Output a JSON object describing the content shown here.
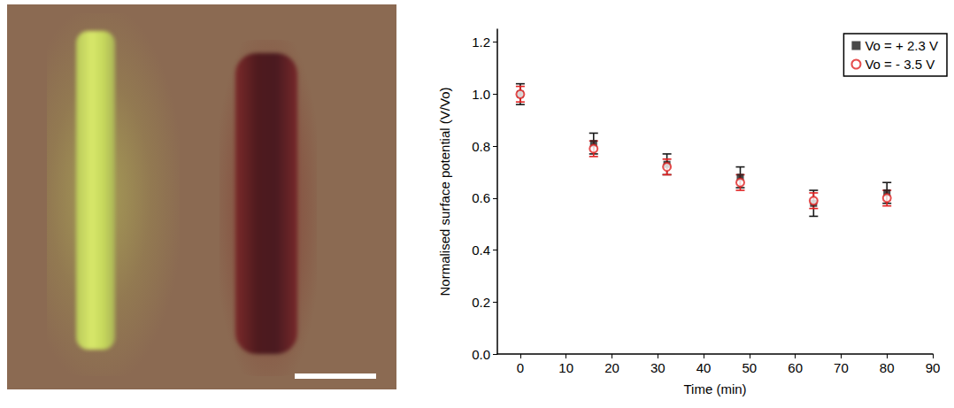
{
  "chart_data": {
    "type": "scatter",
    "x_label": "Time (min)",
    "y_label": "Normalised surface potential (V/Vo)",
    "xlim": [
      -5,
      90
    ],
    "xticks": [
      0,
      10,
      20,
      30,
      40,
      50,
      60,
      70,
      80,
      90
    ],
    "ylim": [
      0,
      1.25
    ],
    "yticks": [
      {
        "value": 0,
        "label": "0.0"
      },
      {
        "value": 0.2,
        "label": "0.2"
      },
      {
        "value": 0.4,
        "label": "0.4"
      },
      {
        "value": 0.6,
        "label": "0.6"
      },
      {
        "value": 0.8,
        "label": "0.8"
      },
      {
        "value": 1,
        "label": "1.0"
      },
      {
        "value": 1.2,
        "label": "1.2"
      }
    ],
    "grid": false,
    "legend": "upper right",
    "x": [
      0,
      16,
      32,
      48,
      64,
      80
    ],
    "series": [
      {
        "name": "Vo = + 2.3 V",
        "color": "#1a1a1a",
        "marker": "square",
        "values": [
          1.0,
          0.81,
          0.73,
          0.68,
          0.58,
          0.62
        ],
        "errors": [
          0.04,
          0.04,
          0.04,
          0.04,
          0.05,
          0.04
        ]
      },
      {
        "name": "Vo = - 3.5 V",
        "color": "#e02020",
        "marker": "circle_open",
        "values": [
          1.0,
          0.79,
          0.72,
          0.66,
          0.59,
          0.6
        ],
        "errors": [
          0.03,
          0.03,
          0.03,
          0.03,
          0.03,
          0.03
        ]
      }
    ]
  }
}
